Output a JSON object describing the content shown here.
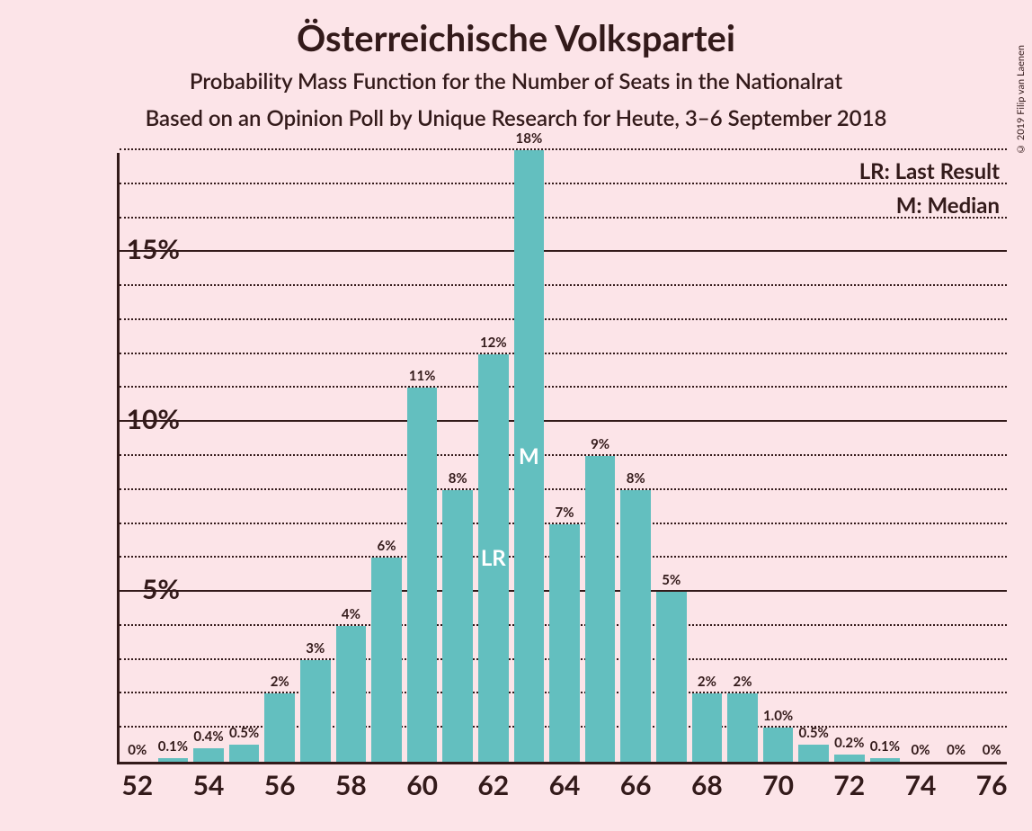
{
  "title": "Österreichische Volkspartei",
  "subtitle1": "Probability Mass Function for the Number of Seats in the Nationalrat",
  "subtitle2": "Based on an Opinion Poll by Unique Research for Heute, 3–6 September 2018",
  "copyright": "© 2019 Filip van Laenen",
  "legend_lr": "LR: Last Result",
  "legend_m": "M: Median",
  "chart": {
    "type": "bar",
    "background_color": "#fce4e8",
    "bar_color": "#63bfbf",
    "axis_color": "#331a1a",
    "text_color": "#331a1a",
    "marker_color": "#ffffff",
    "x_values": [
      52,
      53,
      54,
      55,
      56,
      57,
      58,
      59,
      60,
      61,
      62,
      63,
      64,
      65,
      66,
      67,
      68,
      69,
      70,
      71,
      72,
      73,
      74,
      75,
      76
    ],
    "y_values": [
      0,
      0.1,
      0.4,
      0.5,
      2,
      3,
      4,
      6,
      11,
      8,
      12,
      18,
      7,
      9,
      8,
      5,
      2,
      2,
      1.0,
      0.5,
      0.2,
      0.1,
      0,
      0,
      0
    ],
    "bar_labels": [
      "0%",
      "0.1%",
      "0.4%",
      "0.5%",
      "2%",
      "3%",
      "4%",
      "6%",
      "11%",
      "8%",
      "12%",
      "18%",
      "7%",
      "9%",
      "8%",
      "5%",
      "2%",
      "2%",
      "1.0%",
      "0.5%",
      "0.2%",
      "0.1%",
      "0%",
      "0%",
      "0%"
    ],
    "x_ticks": [
      52,
      54,
      56,
      58,
      60,
      62,
      64,
      66,
      68,
      70,
      72,
      74,
      76
    ],
    "y_ticks_major": [
      5,
      10,
      15
    ],
    "y_ticks_minor": [
      1,
      2,
      3,
      4,
      6,
      7,
      8,
      9,
      11,
      12,
      13,
      14,
      16,
      17,
      18
    ],
    "y_max": 18,
    "bar_width_ratio": 0.85,
    "lr_position": 62,
    "m_position": 63,
    "lr_label": "LR",
    "m_label": "M"
  }
}
